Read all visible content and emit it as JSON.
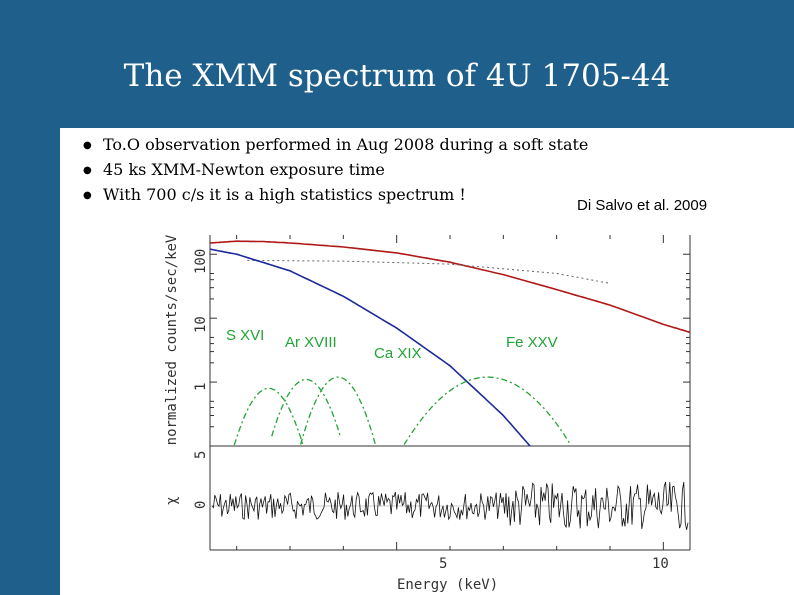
{
  "slide": {
    "title": "The XMM spectrum of 4U 1705-44",
    "bullets": [
      "To.O observation performed in Aug 2008 during a soft state",
      "45 ks XMM-Newton exposure time",
      "With 700 c/s it is a high statistics spectrum !"
    ],
    "bullet_glyph": "●",
    "citation": "Di Salvo et al. 2009",
    "colors": {
      "header": "#1f5f8b",
      "data_total": "#b01818",
      "continuum": "#1c2a9a",
      "lines": "#22a335"
    }
  },
  "chart_data": {
    "type": "line",
    "xlabel": "Energy (keV)",
    "ylabel": "normalized counts/sec/keV",
    "residual_ylabel": "χ",
    "x_ticks": [
      "5",
      "10"
    ],
    "y_ticks": [
      "1",
      "10",
      "100"
    ],
    "residual_ticks": [
      "5",
      "0"
    ],
    "xlim": [
      1.5,
      10.5
    ],
    "ylim": [
      0.1,
      200
    ],
    "yscale": "log",
    "line_labels": [
      "S XVI",
      "Ar XVIII",
      "Ca XIX",
      "Fe XXV"
    ],
    "series": [
      {
        "style": "data+total model",
        "x": [
          1.5,
          2,
          2.5,
          3,
          4,
          5,
          6,
          7,
          8,
          9,
          10,
          10.5
        ],
        "y": [
          150,
          160,
          158,
          150,
          130,
          105,
          75,
          48,
          28,
          16,
          8,
          6
        ]
      },
      {
        "style": "continuum",
        "x": [
          1.5,
          2,
          3,
          4,
          5,
          6,
          7,
          7.5
        ],
        "y": [
          120,
          100,
          55,
          22,
          7,
          1.8,
          0.3,
          0.1
        ]
      },
      {
        "style": "emission lines",
        "x": [
          2.6,
          3.3,
          3.9,
          6.7
        ],
        "y": [
          0.8,
          1.1,
          1.2,
          1.2
        ]
      }
    ]
  }
}
